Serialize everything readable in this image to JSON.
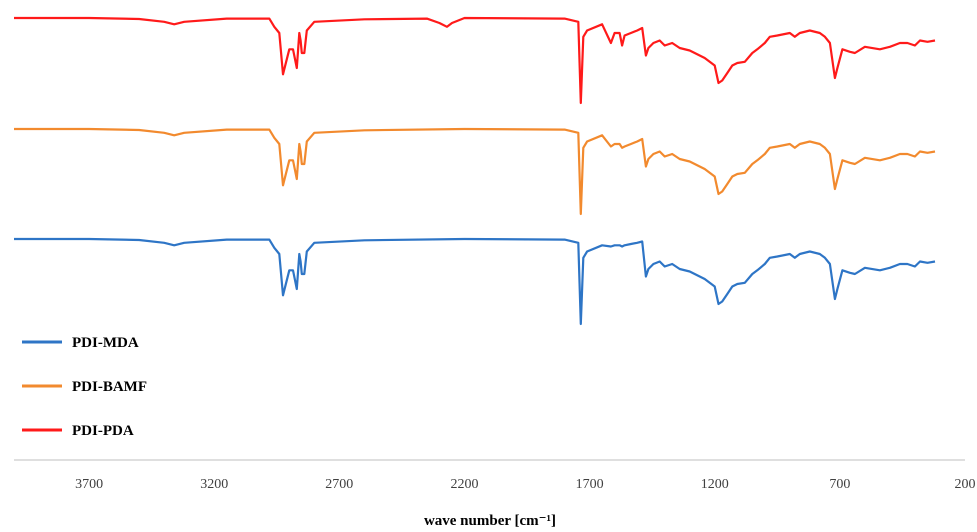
{
  "chart_data": {
    "type": "line",
    "title": "",
    "xlabel": "wave number [cm⁻¹]",
    "ylabel": "",
    "xlim": [
      4000,
      200
    ],
    "x_reversed": true,
    "xticks": [
      3700,
      3200,
      2700,
      2200,
      1700,
      1200,
      700,
      200
    ],
    "grid": false,
    "legend_position": "bottom-left",
    "legend": [
      {
        "name": "PDI-MDA",
        "color": "#2e75c6"
      },
      {
        "name": "PDI-BAMF",
        "color": "#f28a2e"
      },
      {
        "name": "PDI-PDA",
        "color": "#ff1a1a"
      }
    ],
    "series": [
      {
        "name": "PDI-PDA",
        "color": "#ff1a1a",
        "points": [
          [
            4000,
            0
          ],
          [
            3700,
            0
          ],
          [
            3500,
            0.8
          ],
          [
            3400,
            3
          ],
          [
            3360,
            5
          ],
          [
            3320,
            3
          ],
          [
            3150,
            0.5
          ],
          [
            2980,
            0.5
          ],
          [
            2960,
            7
          ],
          [
            2940,
            12
          ],
          [
            2925,
            45
          ],
          [
            2900,
            25
          ],
          [
            2885,
            25
          ],
          [
            2870,
            40
          ],
          [
            2860,
            12
          ],
          [
            2855,
            18
          ],
          [
            2850,
            28
          ],
          [
            2840,
            28
          ],
          [
            2830,
            10
          ],
          [
            2800,
            3
          ],
          [
            2600,
            1
          ],
          [
            2350,
            0.5
          ],
          [
            2300,
            4
          ],
          [
            2270,
            7
          ],
          [
            2250,
            4
          ],
          [
            2200,
            0
          ],
          [
            1800,
            0.5
          ],
          [
            1745,
            3
          ],
          [
            1735,
            68
          ],
          [
            1725,
            15
          ],
          [
            1710,
            10
          ],
          [
            1650,
            5
          ],
          [
            1615,
            20
          ],
          [
            1600,
            12
          ],
          [
            1580,
            12
          ],
          [
            1570,
            22
          ],
          [
            1560,
            14
          ],
          [
            1535,
            12
          ],
          [
            1510,
            10
          ],
          [
            1490,
            8
          ],
          [
            1475,
            30
          ],
          [
            1465,
            24
          ],
          [
            1445,
            20
          ],
          [
            1420,
            18
          ],
          [
            1400,
            22
          ],
          [
            1370,
            20
          ],
          [
            1340,
            24
          ],
          [
            1300,
            26
          ],
          [
            1260,
            30
          ],
          [
            1240,
            32
          ],
          [
            1200,
            38
          ],
          [
            1185,
            52
          ],
          [
            1170,
            50
          ],
          [
            1150,
            44
          ],
          [
            1130,
            38
          ],
          [
            1110,
            36
          ],
          [
            1080,
            35
          ],
          [
            1050,
            28
          ],
          [
            1030,
            25
          ],
          [
            1000,
            20
          ],
          [
            980,
            15
          ],
          [
            950,
            14
          ],
          [
            900,
            12
          ],
          [
            880,
            15
          ],
          [
            860,
            12
          ],
          [
            820,
            10
          ],
          [
            780,
            12
          ],
          [
            760,
            15
          ],
          [
            740,
            20
          ],
          [
            720,
            48
          ],
          [
            710,
            40
          ],
          [
            690,
            25
          ],
          [
            660,
            27
          ],
          [
            640,
            28
          ],
          [
            600,
            23
          ],
          [
            540,
            25
          ],
          [
            500,
            23
          ],
          [
            460,
            20
          ],
          [
            430,
            20
          ],
          [
            400,
            22
          ],
          [
            380,
            18
          ],
          [
            350,
            19
          ],
          [
            320,
            18
          ]
        ]
      },
      {
        "name": "PDI-BAMF",
        "color": "#f28a2e",
        "points": [
          [
            4000,
            0
          ],
          [
            3700,
            0
          ],
          [
            3500,
            0.8
          ],
          [
            3400,
            3
          ],
          [
            3360,
            5
          ],
          [
            3320,
            3
          ],
          [
            3150,
            0.5
          ],
          [
            2980,
            0.5
          ],
          [
            2960,
            7
          ],
          [
            2940,
            12
          ],
          [
            2925,
            45
          ],
          [
            2900,
            25
          ],
          [
            2885,
            25
          ],
          [
            2870,
            40
          ],
          [
            2860,
            12
          ],
          [
            2855,
            18
          ],
          [
            2850,
            28
          ],
          [
            2840,
            28
          ],
          [
            2830,
            10
          ],
          [
            2800,
            3
          ],
          [
            2600,
            1
          ],
          [
            2200,
            0
          ],
          [
            1800,
            0.5
          ],
          [
            1745,
            3
          ],
          [
            1735,
            68
          ],
          [
            1725,
            15
          ],
          [
            1710,
            10
          ],
          [
            1650,
            5
          ],
          [
            1615,
            14
          ],
          [
            1600,
            12
          ],
          [
            1580,
            12
          ],
          [
            1570,
            15
          ],
          [
            1560,
            14
          ],
          [
            1535,
            12
          ],
          [
            1510,
            10
          ],
          [
            1490,
            8
          ],
          [
            1475,
            30
          ],
          [
            1465,
            24
          ],
          [
            1445,
            20
          ],
          [
            1420,
            18
          ],
          [
            1400,
            22
          ],
          [
            1370,
            20
          ],
          [
            1340,
            24
          ],
          [
            1300,
            26
          ],
          [
            1260,
            30
          ],
          [
            1240,
            32
          ],
          [
            1200,
            38
          ],
          [
            1185,
            52
          ],
          [
            1170,
            50
          ],
          [
            1150,
            44
          ],
          [
            1130,
            38
          ],
          [
            1110,
            36
          ],
          [
            1080,
            35
          ],
          [
            1050,
            28
          ],
          [
            1030,
            25
          ],
          [
            1000,
            20
          ],
          [
            980,
            15
          ],
          [
            950,
            14
          ],
          [
            900,
            12
          ],
          [
            880,
            15
          ],
          [
            860,
            12
          ],
          [
            820,
            10
          ],
          [
            780,
            12
          ],
          [
            760,
            15
          ],
          [
            740,
            20
          ],
          [
            720,
            48
          ],
          [
            710,
            40
          ],
          [
            690,
            25
          ],
          [
            660,
            27
          ],
          [
            640,
            28
          ],
          [
            600,
            23
          ],
          [
            540,
            25
          ],
          [
            500,
            23
          ],
          [
            460,
            20
          ],
          [
            430,
            20
          ],
          [
            400,
            22
          ],
          [
            380,
            18
          ],
          [
            350,
            19
          ],
          [
            320,
            18
          ]
        ]
      },
      {
        "name": "PDI-MDA",
        "color": "#2e75c6",
        "points": [
          [
            4000,
            0
          ],
          [
            3700,
            0
          ],
          [
            3500,
            0.8
          ],
          [
            3400,
            3
          ],
          [
            3360,
            5
          ],
          [
            3320,
            3
          ],
          [
            3150,
            0.5
          ],
          [
            2980,
            0.5
          ],
          [
            2960,
            7
          ],
          [
            2940,
            12
          ],
          [
            2925,
            45
          ],
          [
            2900,
            25
          ],
          [
            2885,
            25
          ],
          [
            2870,
            40
          ],
          [
            2860,
            12
          ],
          [
            2855,
            18
          ],
          [
            2850,
            28
          ],
          [
            2840,
            28
          ],
          [
            2830,
            10
          ],
          [
            2800,
            3
          ],
          [
            2600,
            1
          ],
          [
            2200,
            0
          ],
          [
            1800,
            0.5
          ],
          [
            1745,
            3
          ],
          [
            1735,
            68
          ],
          [
            1725,
            15
          ],
          [
            1710,
            10
          ],
          [
            1650,
            5
          ],
          [
            1615,
            6
          ],
          [
            1600,
            5
          ],
          [
            1580,
            5
          ],
          [
            1570,
            6
          ],
          [
            1560,
            5
          ],
          [
            1535,
            4
          ],
          [
            1510,
            3
          ],
          [
            1490,
            2
          ],
          [
            1475,
            30
          ],
          [
            1465,
            24
          ],
          [
            1445,
            20
          ],
          [
            1420,
            18
          ],
          [
            1400,
            22
          ],
          [
            1370,
            20
          ],
          [
            1340,
            24
          ],
          [
            1300,
            26
          ],
          [
            1260,
            30
          ],
          [
            1240,
            32
          ],
          [
            1200,
            38
          ],
          [
            1185,
            52
          ],
          [
            1170,
            50
          ],
          [
            1150,
            44
          ],
          [
            1130,
            38
          ],
          [
            1110,
            36
          ],
          [
            1080,
            35
          ],
          [
            1050,
            28
          ],
          [
            1030,
            25
          ],
          [
            1000,
            20
          ],
          [
            980,
            15
          ],
          [
            950,
            14
          ],
          [
            900,
            12
          ],
          [
            880,
            15
          ],
          [
            860,
            12
          ],
          [
            820,
            10
          ],
          [
            780,
            12
          ],
          [
            760,
            15
          ],
          [
            740,
            20
          ],
          [
            720,
            48
          ],
          [
            710,
            40
          ],
          [
            690,
            25
          ],
          [
            660,
            27
          ],
          [
            640,
            28
          ],
          [
            600,
            23
          ],
          [
            540,
            25
          ],
          [
            500,
            23
          ],
          [
            460,
            20
          ],
          [
            430,
            20
          ],
          [
            400,
            22
          ],
          [
            380,
            18
          ],
          [
            350,
            19
          ],
          [
            320,
            18
          ]
        ]
      }
    ]
  }
}
